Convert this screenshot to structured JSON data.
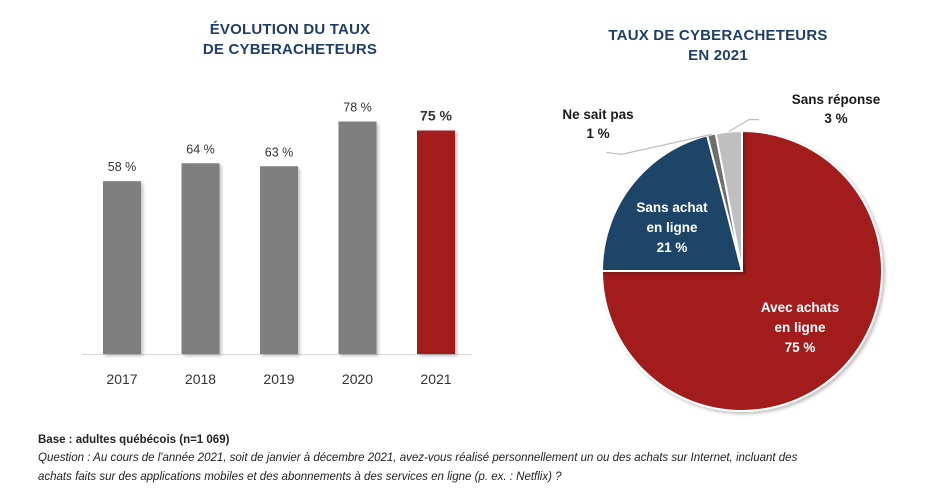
{
  "chart_data": [
    {
      "type": "bar",
      "title": "ÉVOLUTION DU TAUX DE CYBERACHETEURS",
      "title_lines": [
        "ÉVOLUTION DU TAUX",
        "DE CYBERACHETEURS"
      ],
      "categories": [
        "2017",
        "2018",
        "2019",
        "2020",
        "2021"
      ],
      "values": [
        58,
        64,
        63,
        78,
        75
      ],
      "value_labels": [
        "58 %",
        "64 %",
        "63 %",
        "78 %",
        "75 %"
      ],
      "highlight_index": 4,
      "xlabel": "",
      "ylabel": "",
      "ylim": [
        0,
        100
      ],
      "grid": false,
      "colors": {
        "default": "#7f7f7f",
        "highlight": "#a21c1c"
      }
    },
    {
      "type": "pie",
      "title": "TAUX DE CYBERACHETEURS EN 2021",
      "title_lines": [
        "TAUX DE CYBERACHETEURS",
        "EN 2021"
      ],
      "slices": [
        {
          "label": "Avec achats en ligne",
          "label_lines": [
            "Avec achats",
            "en ligne",
            "75 %"
          ],
          "value": 75,
          "color": "#a21c1c"
        },
        {
          "label": "Sans achat en ligne",
          "label_lines": [
            "Sans achat",
            "en ligne",
            "21 %"
          ],
          "value": 21,
          "color": "#1f4468"
        },
        {
          "label": "Ne sait pas",
          "label_lines": [
            "Ne sait pas",
            "1 %"
          ],
          "value": 1,
          "color": "#6e6e6e"
        },
        {
          "label": "Sans réponse",
          "label_lines": [
            "Sans réponse",
            "3 %"
          ],
          "value": 3,
          "color": "#bfbfbf"
        }
      ],
      "start": "top",
      "direction": "clockwise"
    }
  ],
  "footer": {
    "base": "Base : adultes québécois (n=1 069)",
    "question_line1": "Question : Au cours de l'année 2021, soit de janvier à décembre 2021, avez-vous réalisé personnellement un ou des achats sur Internet, incluant des",
    "question_line2": "achats faits sur des applications mobiles et des abonnements à des services en ligne (p. ex. : Netflix) ?"
  }
}
